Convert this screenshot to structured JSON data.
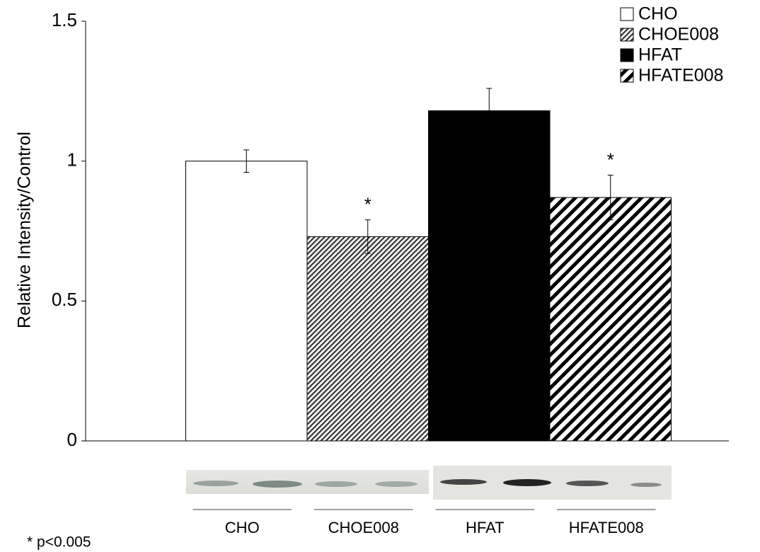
{
  "chart_data": {
    "type": "bar",
    "y_label": "Relative Intensity/Control",
    "categories": [
      "CHO",
      "CHOE008",
      "HFAT",
      "HFATE008"
    ],
    "values": [
      1.0,
      0.73,
      1.18,
      0.87
    ],
    "errors": [
      0.04,
      0.06,
      0.08,
      0.08
    ],
    "fills": [
      "white",
      "hatch-fine",
      "black",
      "hatch-wide"
    ],
    "annotations": [
      {
        "text": "*",
        "category": "CHOE008"
      },
      {
        "text": "*",
        "category": "HFATE008"
      }
    ],
    "footnote": "* p<0.005",
    "ylim": [
      0,
      1.5
    ],
    "yticks": [
      0,
      0.5,
      1,
      1.5
    ],
    "legend": "upper right"
  }
}
